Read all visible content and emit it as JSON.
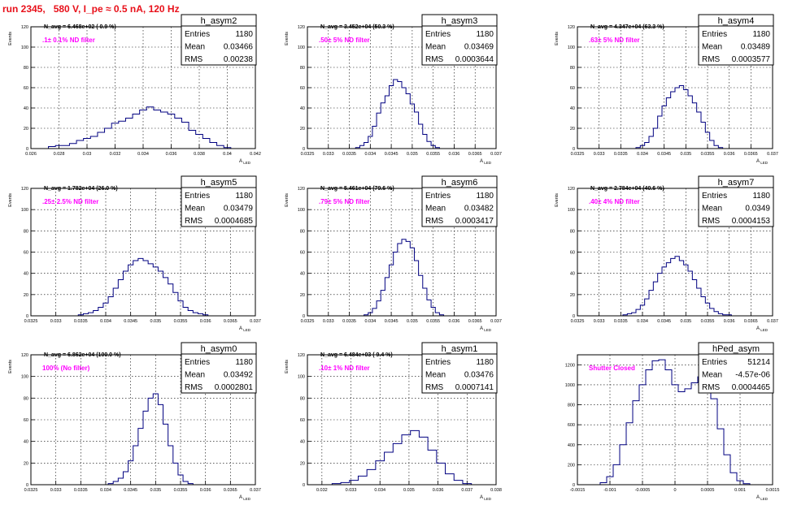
{
  "title": "run 2345,   580 V, I_pe ≈ 0.5 nA, 120 Hz",
  "colors": {
    "title": "#e8101a",
    "line": "#000080",
    "grid": "#000000",
    "annotation": "#ff00ff",
    "frame": "#000000"
  },
  "chart_data": [
    {
      "type": "histogram",
      "name": "h_asym2",
      "stats": {
        "entries": "1180",
        "mean": "0.03466",
        "rms": "0.00238"
      },
      "navg": "N_avg = 6.468e+02 ( 0.9 %)",
      "annotation": ".1± 0.1% ND filter",
      "xlabel": "A_LED",
      "ylabel": "Events",
      "xlim": [
        0.026,
        0.042
      ],
      "ylim": [
        0,
        120
      ],
      "xticks": [
        "0.026",
        "0.028",
        "0.03",
        "0.032",
        "0.034",
        "0.036",
        "0.038",
        "0.04",
        "0.042"
      ],
      "yticks": [
        "0",
        "20",
        "40",
        "60",
        "80",
        "100",
        "120"
      ],
      "x": [
        0.0275,
        0.028,
        0.0285,
        0.029,
        0.0295,
        0.03,
        0.0305,
        0.031,
        0.0315,
        0.032,
        0.0325,
        0.033,
        0.0335,
        0.034,
        0.0345,
        0.035,
        0.0355,
        0.036,
        0.0365,
        0.037,
        0.0375,
        0.038,
        0.0385,
        0.039,
        0.0395,
        0.04
      ],
      "values": [
        2,
        3,
        3,
        5,
        8,
        10,
        12,
        16,
        20,
        25,
        27,
        30,
        34,
        38,
        41,
        38,
        36,
        34,
        30,
        26,
        18,
        14,
        10,
        6,
        3,
        1
      ]
    },
    {
      "type": "histogram",
      "name": "h_asym3",
      "stats": {
        "entries": "1180",
        "mean": "0.03469",
        "rms": "0.0003644"
      },
      "navg": "N_avg = 3.452e+04 (50.3 %)",
      "annotation": ".50± 5% ND filter",
      "xlabel": "A_LED",
      "ylabel": "Events",
      "xlim": [
        0.0325,
        0.037
      ],
      "ylim": [
        0,
        120
      ],
      "xticks": [
        "0.0325",
        "0.033",
        "0.0335",
        "0.034",
        "0.0345",
        "0.035",
        "0.0355",
        "0.036",
        "0.0365",
        "0.037"
      ],
      "yticks": [
        "0",
        "20",
        "40",
        "60",
        "80",
        "100",
        "120"
      ],
      "x": [
        0.0337,
        0.0338,
        0.0339,
        0.034,
        0.0341,
        0.0342,
        0.0343,
        0.0344,
        0.0345,
        0.0346,
        0.0347,
        0.0348,
        0.0349,
        0.035,
        0.0351,
        0.0352,
        0.0353,
        0.0354,
        0.0355,
        0.0356
      ],
      "values": [
        1,
        3,
        6,
        12,
        22,
        35,
        45,
        52,
        62,
        68,
        66,
        60,
        54,
        44,
        36,
        24,
        14,
        7,
        3,
        1
      ]
    },
    {
      "type": "histogram",
      "name": "h_asym4",
      "stats": {
        "entries": "1180",
        "mean": "0.03489",
        "rms": "0.0003577"
      },
      "navg": "N_avg = 4.347e+04 (63.3 %)",
      "annotation": ".63± 5% ND filter",
      "xlabel": "A_LED",
      "ylabel": "Events",
      "xlim": [
        0.0325,
        0.037
      ],
      "ylim": [
        0,
        120
      ],
      "xticks": [
        "0.0325",
        "0.033",
        "0.0335",
        "0.034",
        "0.0345",
        "0.035",
        "0.0355",
        "0.036",
        "0.0365",
        "0.037"
      ],
      "yticks": [
        "0",
        "20",
        "40",
        "60",
        "80",
        "100",
        "120"
      ],
      "x": [
        0.0339,
        0.034,
        0.0341,
        0.0342,
        0.0343,
        0.0344,
        0.0345,
        0.0346,
        0.0347,
        0.0348,
        0.0349,
        0.035,
        0.0351,
        0.0352,
        0.0353,
        0.0354,
        0.0355,
        0.0356,
        0.0357,
        0.0358
      ],
      "values": [
        1,
        3,
        6,
        12,
        20,
        32,
        42,
        50,
        56,
        60,
        62,
        58,
        52,
        45,
        36,
        26,
        16,
        8,
        3,
        1
      ]
    },
    {
      "type": "histogram",
      "name": "h_asym5",
      "stats": {
        "entries": "1180",
        "mean": "0.03479",
        "rms": "0.0004685"
      },
      "navg": "N_avg = 1.782e+04 (26.0 %)",
      "annotation": ".25± 2.5% ND filter",
      "xlabel": "A_LED",
      "ylabel": "Events",
      "xlim": [
        0.0325,
        0.037
      ],
      "ylim": [
        0,
        120
      ],
      "xticks": [
        "0.0325",
        "0.033",
        "0.0335",
        "0.034",
        "0.0345",
        "0.035",
        "0.0355",
        "0.036",
        "0.0365",
        "0.037"
      ],
      "yticks": [
        "0",
        "20",
        "40",
        "60",
        "80",
        "100",
        "120"
      ],
      "x": [
        0.0335,
        0.0336,
        0.0337,
        0.0338,
        0.0339,
        0.034,
        0.0341,
        0.0342,
        0.0343,
        0.0344,
        0.0345,
        0.0346,
        0.0347,
        0.0348,
        0.0349,
        0.035,
        0.0351,
        0.0352,
        0.0353,
        0.0354,
        0.0355,
        0.0356,
        0.0357,
        0.0358,
        0.0359,
        0.036
      ],
      "values": [
        1,
        2,
        3,
        5,
        8,
        12,
        18,
        26,
        34,
        42,
        48,
        52,
        54,
        52,
        49,
        46,
        42,
        36,
        30,
        22,
        14,
        8,
        5,
        3,
        2,
        1
      ]
    },
    {
      "type": "histogram",
      "name": "h_asym6",
      "stats": {
        "entries": "1180",
        "mean": "0.03482",
        "rms": "0.0003417"
      },
      "navg": "N_avg = 5.461e+04 (79.6 %)",
      "annotation": ".79± 5% ND filter",
      "xlabel": "A_LED",
      "ylabel": "Events",
      "xlim": [
        0.0325,
        0.037
      ],
      "ylim": [
        0,
        120
      ],
      "xticks": [
        "0.0325",
        "0.033",
        "0.0335",
        "0.034",
        "0.0345",
        "0.035",
        "0.0355",
        "0.036",
        "0.0365",
        "0.037"
      ],
      "yticks": [
        "0",
        "20",
        "40",
        "60",
        "80",
        "100",
        "120"
      ],
      "x": [
        0.0339,
        0.034,
        0.0341,
        0.0342,
        0.0343,
        0.0344,
        0.0345,
        0.0346,
        0.0347,
        0.0348,
        0.0349,
        0.035,
        0.0351,
        0.0352,
        0.0353,
        0.0354,
        0.0355,
        0.0356,
        0.0357
      ],
      "values": [
        1,
        3,
        7,
        14,
        24,
        36,
        48,
        60,
        68,
        72,
        70,
        64,
        52,
        38,
        26,
        15,
        8,
        3,
        1
      ]
    },
    {
      "type": "histogram",
      "name": "h_asym7",
      "stats": {
        "entries": "1180",
        "mean": "0.0349",
        "rms": "0.0004153"
      },
      "navg": "N_avg = 2.784e+04 (40.6 %)",
      "annotation": ".40± 4% ND filter",
      "xlabel": "A_LED",
      "ylabel": "Events",
      "xlim": [
        0.0325,
        0.037
      ],
      "ylim": [
        0,
        120
      ],
      "xticks": [
        "0.0325",
        "0.033",
        "0.0335",
        "0.034",
        "0.0345",
        "0.035",
        "0.0355",
        "0.036",
        "0.0365",
        "0.037"
      ],
      "yticks": [
        "0",
        "20",
        "40",
        "60",
        "80",
        "100",
        "120"
      ],
      "x": [
        0.0336,
        0.0337,
        0.0338,
        0.0339,
        0.034,
        0.0341,
        0.0342,
        0.0343,
        0.0344,
        0.0345,
        0.0346,
        0.0347,
        0.0348,
        0.0349,
        0.035,
        0.0351,
        0.0352,
        0.0353,
        0.0354,
        0.0355,
        0.0356,
        0.0357,
        0.0358,
        0.0359,
        0.036
      ],
      "values": [
        1,
        2,
        3,
        6,
        10,
        16,
        24,
        32,
        40,
        46,
        50,
        54,
        56,
        52,
        48,
        42,
        34,
        26,
        18,
        12,
        7,
        4,
        2,
        1,
        1
      ]
    },
    {
      "type": "histogram",
      "name": "h_asym0",
      "stats": {
        "entries": "1180",
        "mean": "0.03492",
        "rms": "0.0002801"
      },
      "navg": "N_avg = 6.862e+04 (100.0 %)",
      "annotation": "100% (No filter)",
      "xlabel": "A_LED",
      "ylabel": "Events",
      "xlim": [
        0.0325,
        0.037
      ],
      "ylim": [
        0,
        120
      ],
      "xticks": [
        "0.0325",
        "0.033",
        "0.0335",
        "0.034",
        "0.0345",
        "0.035",
        "0.0355",
        "0.036",
        "0.0365",
        "0.037"
      ],
      "yticks": [
        "0",
        "20",
        "40",
        "60",
        "80",
        "100",
        "120"
      ],
      "x": [
        0.0341,
        0.0342,
        0.0343,
        0.0344,
        0.0345,
        0.0346,
        0.0347,
        0.0348,
        0.0349,
        0.035,
        0.0351,
        0.0352,
        0.0353,
        0.0354,
        0.0355,
        0.0356,
        0.0357
      ],
      "values": [
        1,
        3,
        6,
        12,
        22,
        36,
        52,
        68,
        80,
        84,
        74,
        56,
        36,
        20,
        9,
        3,
        1
      ]
    },
    {
      "type": "histogram",
      "name": "h_asym1",
      "stats": {
        "entries": "1180",
        "mean": "0.03476",
        "rms": "0.0007141"
      },
      "navg": "N_avg = 6.484e+03 ( 9.4 %)",
      "annotation": ".10± 1% ND filter",
      "xlabel": "A_LED",
      "ylabel": "Events",
      "xlim": [
        0.0315,
        0.038
      ],
      "ylim": [
        0,
        120
      ],
      "xticks": [
        "0.032",
        "0.033",
        "0.034",
        "0.035",
        "0.036",
        "0.037",
        "0.038"
      ],
      "yticks": [
        "0",
        "20",
        "40",
        "60",
        "80",
        "100",
        "120"
      ],
      "x": [
        0.0325,
        0.0328,
        0.0331,
        0.0334,
        0.0337,
        0.034,
        0.0343,
        0.0346,
        0.0349,
        0.0352,
        0.0355,
        0.0358,
        0.0361,
        0.0364,
        0.0367,
        0.037
      ],
      "values": [
        1,
        2,
        4,
        8,
        14,
        22,
        30,
        38,
        46,
        50,
        44,
        32,
        20,
        10,
        4,
        1
      ]
    },
    {
      "type": "histogram",
      "name": "hPed_asym",
      "stats": {
        "entries": "51214",
        "mean": "-4.57e-06",
        "rms": "0.0004465"
      },
      "navg": "",
      "annotation": "Shutter Closed",
      "xlabel": "A_LED",
      "ylabel": "",
      "xlim": [
        -0.0015,
        0.0015
      ],
      "ylim": [
        0,
        1300
      ],
      "xticks": [
        "-0.0015",
        "-0.001",
        "-0.0005",
        "0",
        "0.0005",
        "0.001",
        "0.0015"
      ],
      "yticks": [
        "0",
        "200",
        "400",
        "600",
        "800",
        "1000",
        "1200"
      ],
      "x": [
        -0.0011,
        -0.001,
        -0.0009,
        -0.0008,
        -0.0007,
        -0.0006,
        -0.0005,
        -0.0004,
        -0.0003,
        -0.0002,
        -0.0001,
        0.0,
        0.0001,
        0.0002,
        0.0003,
        0.0004,
        0.0005,
        0.0006,
        0.0007,
        0.0008,
        0.0009,
        0.001,
        0.0011
      ],
      "values": [
        20,
        80,
        200,
        400,
        620,
        840,
        1000,
        1150,
        1240,
        1250,
        1150,
        1000,
        930,
        960,
        1020,
        1080,
        1040,
        860,
        560,
        300,
        120,
        40,
        10
      ]
    }
  ]
}
